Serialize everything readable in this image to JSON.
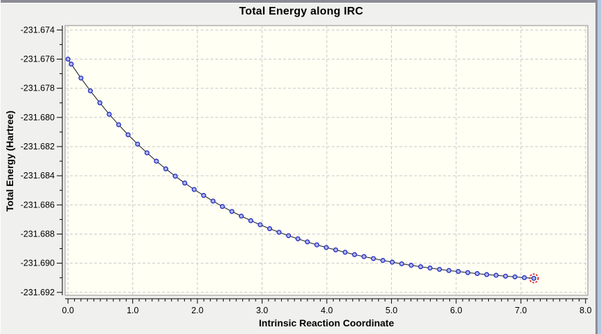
{
  "window": {
    "title_bar_color": "#8c8c96",
    "background_color": "#f0f0ef",
    "right_strip_color": "#b3c9e2"
  },
  "chart": {
    "title": "Total Energy along IRC",
    "x_label": "Intrinsic Reaction Coordinate",
    "y_label": "Total Energy (Hartree)",
    "colors": {
      "plot_bg": "#fffff4",
      "plot_border": "#8d8d8d",
      "grid": "#c9c9c9",
      "axis": "#000000",
      "line": "#151515",
      "marker_fill": "#a9b6ef",
      "marker_stroke": "#2328bf",
      "highlight_ring": "#e02020"
    }
  },
  "chart_data": {
    "type": "line",
    "title": "Total Energy along IRC",
    "xlabel": "Intrinsic Reaction Coordinate",
    "ylabel": "Total Energy (Hartree)",
    "xlim": [
      -0.045,
      8.035
    ],
    "ylim": [
      -231.6922,
      -231.6737
    ],
    "grid": true,
    "x_major_ticks": [
      0.0,
      1.0,
      2.0,
      3.0,
      4.0,
      5.0,
      6.0,
      7.0,
      8.0
    ],
    "x_tick_labels": [
      "0.0",
      "1.0",
      "2.0",
      "3.0",
      "4.0",
      "5.0",
      "6.0",
      "7.0",
      "8.0"
    ],
    "x_minor_step": 0.1,
    "y_major_ticks": [
      -231.674,
      -231.676,
      -231.678,
      -231.68,
      -231.682,
      -231.684,
      -231.686,
      -231.688,
      -231.69,
      -231.692
    ],
    "y_tick_labels": [
      "-231.674",
      "-231.676",
      "-231.678",
      "-231.680",
      "-231.682",
      "-231.684",
      "-231.686",
      "-231.688",
      "-231.690",
      "-231.692"
    ],
    "y_minor_step": 0.001,
    "series": [
      {
        "name": "Total Energy",
        "x": [
          0.0,
          0.05,
          0.2,
          0.346,
          0.492,
          0.637,
          0.783,
          0.929,
          1.075,
          1.221,
          1.367,
          1.512,
          1.658,
          1.804,
          1.95,
          2.096,
          2.242,
          2.387,
          2.533,
          2.679,
          2.825,
          2.971,
          3.117,
          3.262,
          3.408,
          3.554,
          3.7,
          3.846,
          3.992,
          4.137,
          4.283,
          4.429,
          4.575,
          4.721,
          4.867,
          5.012,
          5.158,
          5.304,
          5.45,
          5.596,
          5.742,
          5.887,
          6.033,
          6.179,
          6.325,
          6.471,
          6.617,
          6.762,
          6.908,
          7.054,
          7.2
        ],
        "y": [
          -231.676,
          -231.67634,
          -231.6773,
          -231.67818,
          -231.679,
          -231.67978,
          -231.6805,
          -231.68119,
          -231.68183,
          -231.68243,
          -231.683,
          -231.68353,
          -231.68403,
          -231.6845,
          -231.68494,
          -231.68535,
          -231.68574,
          -231.68611,
          -231.68645,
          -231.68677,
          -231.68708,
          -231.68736,
          -231.68763,
          -231.68788,
          -231.68811,
          -231.68833,
          -231.68854,
          -231.68874,
          -231.68892,
          -231.68909,
          -231.68925,
          -231.68941,
          -231.68955,
          -231.68968,
          -231.68981,
          -231.68993,
          -231.69004,
          -231.69014,
          -231.69024,
          -231.69033,
          -231.69042,
          -231.6905,
          -231.69057,
          -231.69065,
          -231.69071,
          -231.69078,
          -231.69083,
          -231.69089,
          -231.69094,
          -231.69099,
          -231.69104
        ]
      }
    ],
    "highlight_point": {
      "x": 7.2,
      "y": -231.69104
    }
  }
}
